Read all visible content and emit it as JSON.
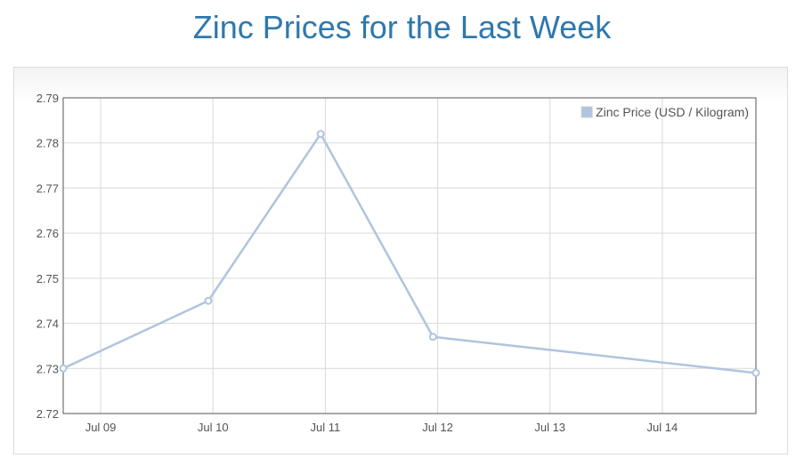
{
  "page": {
    "title": "Zinc Prices for the Last Week"
  },
  "colors": {
    "title": "#2f78ad",
    "series": "#b0c4de",
    "grid": "#d9d9d9",
    "axis": "#555555"
  },
  "chart_data": {
    "type": "line",
    "title": "Zinc Prices for the Last Week",
    "xlabel": "",
    "ylabel": "",
    "x_tick_labels": [
      "Jul 09",
      "Jul 10",
      "Jul 11",
      "Jul 12",
      "Jul 13",
      "Jul 14"
    ],
    "y_tick_labels": [
      "2.79",
      "2.78",
      "2.77",
      "2.76",
      "2.75",
      "2.74",
      "2.73",
      "2.72"
    ],
    "ylim": [
      2.72,
      2.79
    ],
    "xlim": [
      "2015-07-08 16:00",
      "2015-07-14 20:00"
    ],
    "grid": true,
    "legend_position": "top-right",
    "series": [
      {
        "name": "Zinc Price (USD / Kilogram)",
        "color": "#b0c4de",
        "points": [
          {
            "x": "2015-07-08 16:00",
            "y": 2.73
          },
          {
            "x": "2015-07-09 23:00",
            "y": 2.745
          },
          {
            "x": "2015-07-10 23:00",
            "y": 2.782
          },
          {
            "x": "2015-07-11 23:00",
            "y": 2.737
          },
          {
            "x": "2015-07-14 20:00",
            "y": 2.729
          }
        ]
      }
    ]
  }
}
